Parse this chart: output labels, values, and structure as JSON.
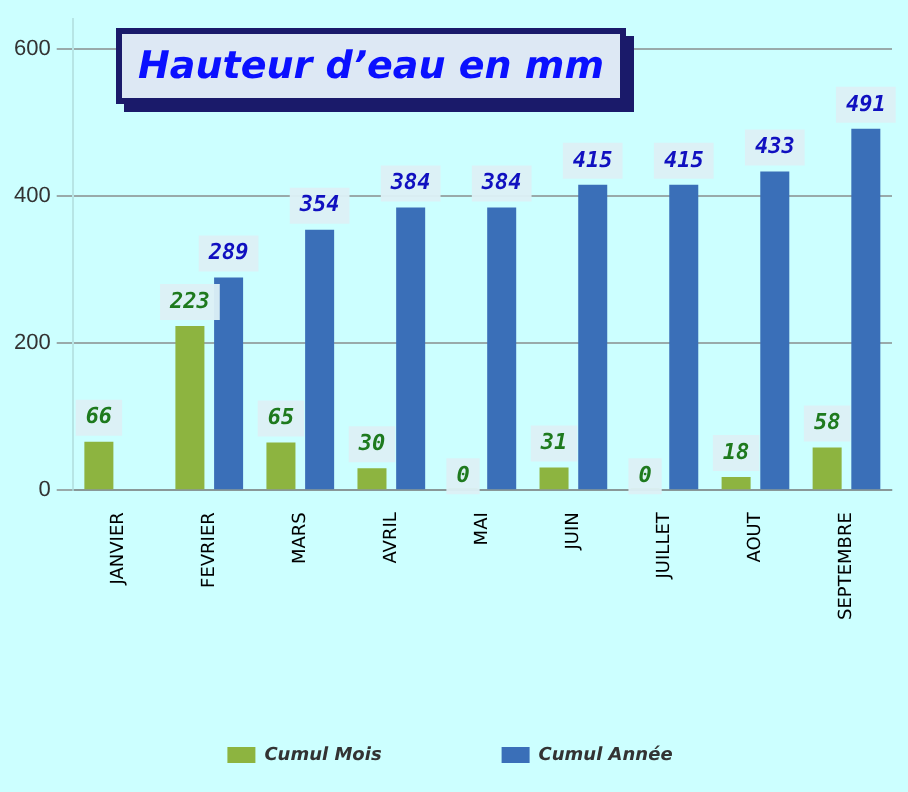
{
  "chart_data": {
    "type": "bar",
    "title": "Hauteur d’eau en mm",
    "categories": [
      "JANVIER",
      "FEVRIER",
      "MARS",
      "AVRIL",
      "MAI",
      "JUIN",
      "JUILLET",
      "AOUT",
      "SEPTEMBRE"
    ],
    "series": [
      {
        "name": "Cumul Mois",
        "color": "#8db440",
        "values": [
          66,
          223,
          65,
          30,
          0,
          31,
          0,
          18,
          58
        ]
      },
      {
        "name": "Cumul Année",
        "color": "#3a6fb8",
        "values": [
          null,
          289,
          354,
          384,
          384,
          415,
          415,
          433,
          491
        ]
      }
    ],
    "ylim": [
      0,
      640
    ],
    "yticks": [
      0,
      200,
      400,
      600
    ],
    "grid": "y",
    "legend": "bottom",
    "data_labels": true
  }
}
